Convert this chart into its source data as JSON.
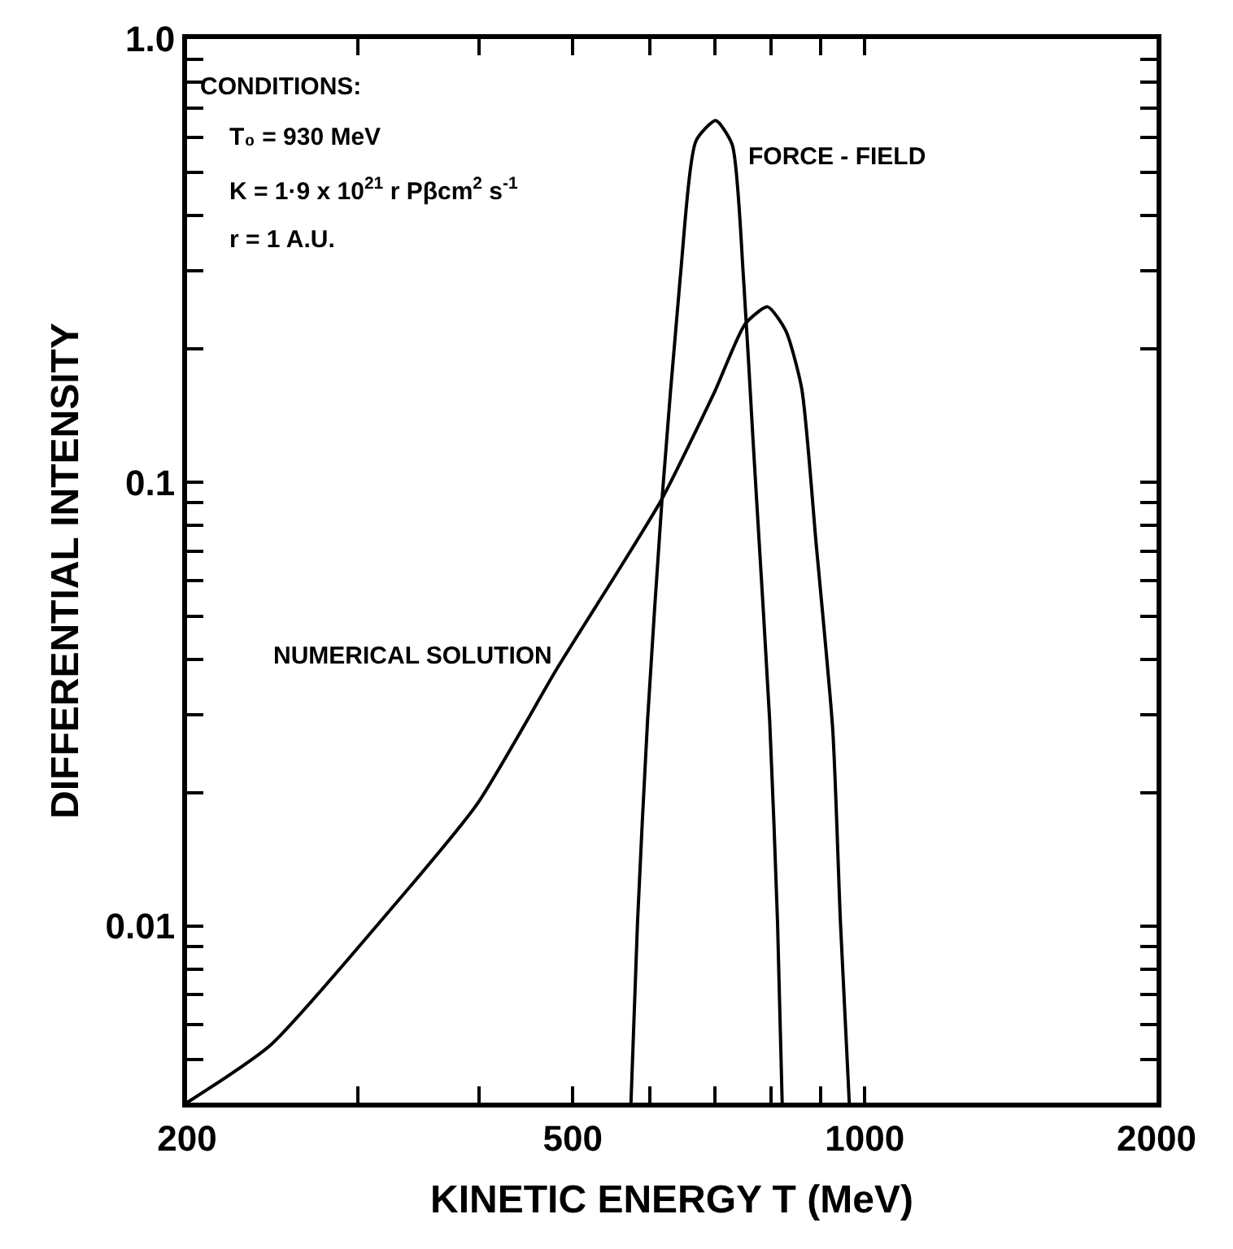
{
  "chart_data": {
    "type": "line",
    "xlabel": "KINETIC ENERGY T (MeV)",
    "ylabel": "DIFFERENTIAL INTENSITY",
    "log": "xy",
    "legend": false,
    "marker": "none",
    "line_style": "solid",
    "xlim": [
      200,
      2000
    ],
    "ylim": [
      0.004,
      1.0
    ],
    "xticks": [
      200,
      {
        "value": 300,
        "label": null
      },
      {
        "value": 400,
        "label": null
      },
      500,
      {
        "value": 600,
        "label": null
      },
      {
        "value": 700,
        "label": null
      },
      {
        "value": 800,
        "label": null
      },
      {
        "value": 900,
        "label": null
      },
      1000,
      2000
    ],
    "yticks": [
      {
        "value": 0.004,
        "label": null
      },
      {
        "value": 0.005,
        "label": null
      },
      {
        "value": 0.006,
        "label": null
      },
      {
        "value": 0.007,
        "label": null
      },
      {
        "value": 0.008,
        "label": null
      },
      {
        "value": 0.009,
        "label": null
      },
      {
        "value": 0.01,
        "label": "0.01"
      },
      {
        "value": 0.02,
        "label": null
      },
      {
        "value": 0.03,
        "label": null
      },
      {
        "value": 0.04,
        "label": null
      },
      {
        "value": 0.05,
        "label": null
      },
      {
        "value": 0.06,
        "label": null
      },
      {
        "value": 0.07,
        "label": null
      },
      {
        "value": 0.08,
        "label": null
      },
      {
        "value": 0.09,
        "label": null
      },
      {
        "value": 0.1,
        "label": "0.1"
      },
      {
        "value": 0.2,
        "label": null
      },
      {
        "value": 0.3,
        "label": null
      },
      {
        "value": 0.4,
        "label": null
      },
      {
        "value": 0.5,
        "label": null
      },
      {
        "value": 0.6,
        "label": null
      },
      {
        "value": 0.7,
        "label": null
      },
      {
        "value": 0.8,
        "label": null
      },
      {
        "value": 0.9,
        "label": null
      },
      {
        "value": 1.0,
        "label": "1.0"
      }
    ],
    "annotations": [
      "CONDITIONS:",
      "T₀ = 930 MeV",
      "K = 1·9 x 10$^{21}$ r Pβcm$^{2}$ s$^{-1}$",
      "r = 1 A.U."
    ],
    "series": [
      {
        "name": "NUMERICAL SOLUTION",
        "color": "#000000",
        "x": [
          200,
          244,
          316,
          398,
          483,
          557,
          618,
          700,
          753,
          794,
          829,
          861,
          891,
          927,
          944,
          964
        ],
        "values": [
          0.004,
          0.0054,
          0.0102,
          0.0188,
          0.0385,
          0.0633,
          0.092,
          0.16,
          0.228,
          0.249,
          0.22,
          0.163,
          0.073,
          0.0276,
          0.0102,
          0.004
        ]
      },
      {
        "name": "FORCE - FIELD",
        "color": "#000000",
        "x": [
          574,
          583,
          597,
          618,
          645,
          670,
          702,
          730,
          750,
          767,
          773,
          798,
          813,
          822
        ],
        "values": [
          0.004,
          0.0102,
          0.029,
          0.092,
          0.287,
          0.59,
          0.655,
          0.578,
          0.287,
          0.125,
          0.094,
          0.029,
          0.0102,
          0.004
        ]
      }
    ]
  }
}
